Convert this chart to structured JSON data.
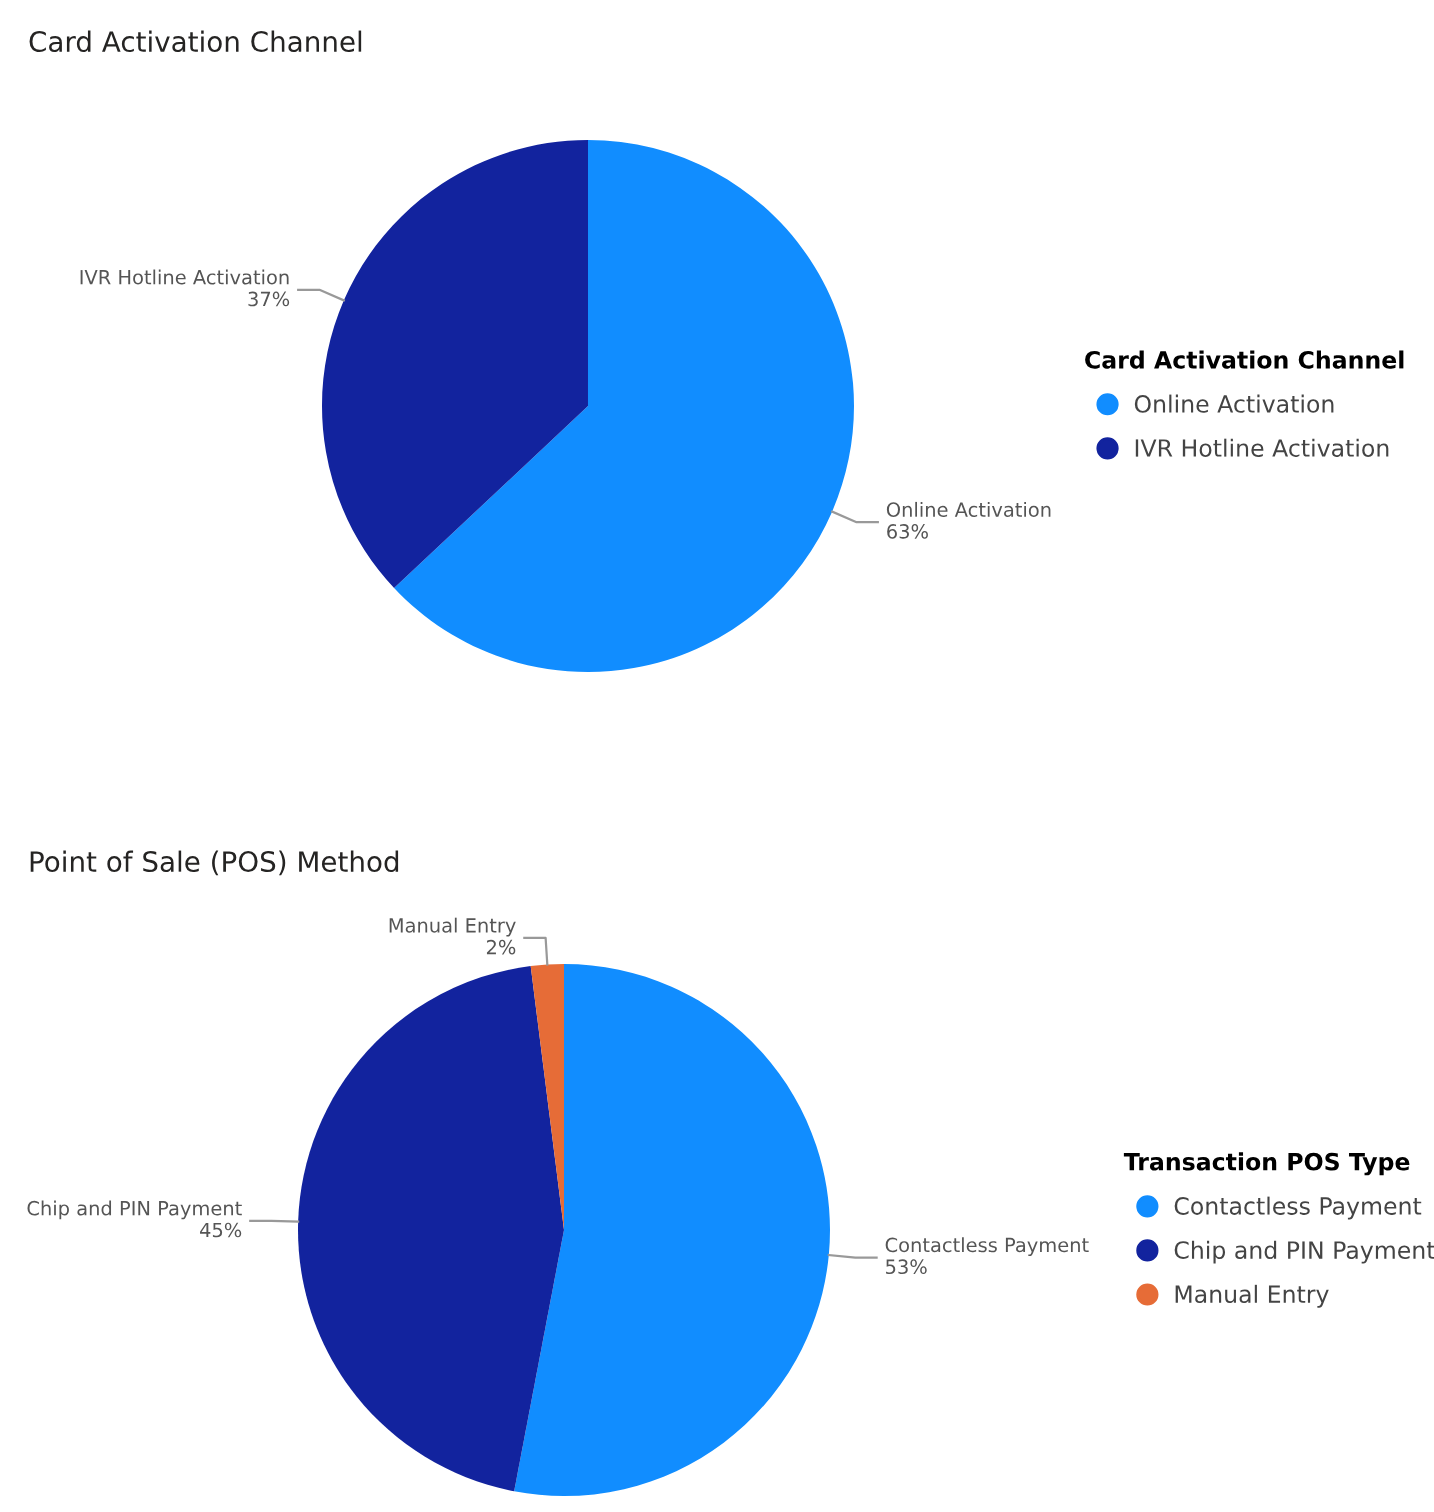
{
  "chart_data": [
    {
      "type": "pie",
      "title": "Card Activation Channel",
      "legend_title": "Card Activation Channel",
      "legend": "right",
      "categories": [
        "Online Activation",
        "IVR Hotline Activation"
      ],
      "values": [
        63,
        37
      ],
      "value_labels": [
        "63%",
        "37%"
      ],
      "colors": [
        "#118dff",
        "#12239e"
      ]
    },
    {
      "type": "pie",
      "title": "Point of Sale (POS) Method",
      "legend_title": "Transaction POS Type",
      "legend": "right",
      "categories": [
        "Contactless Payment",
        "Chip and PIN Payment",
        "Manual Entry"
      ],
      "values": [
        53,
        45,
        2
      ],
      "value_labels": [
        "53%",
        "45%",
        "2%"
      ],
      "colors": [
        "#118dff",
        "#12239e",
        "#e66c37"
      ]
    }
  ]
}
